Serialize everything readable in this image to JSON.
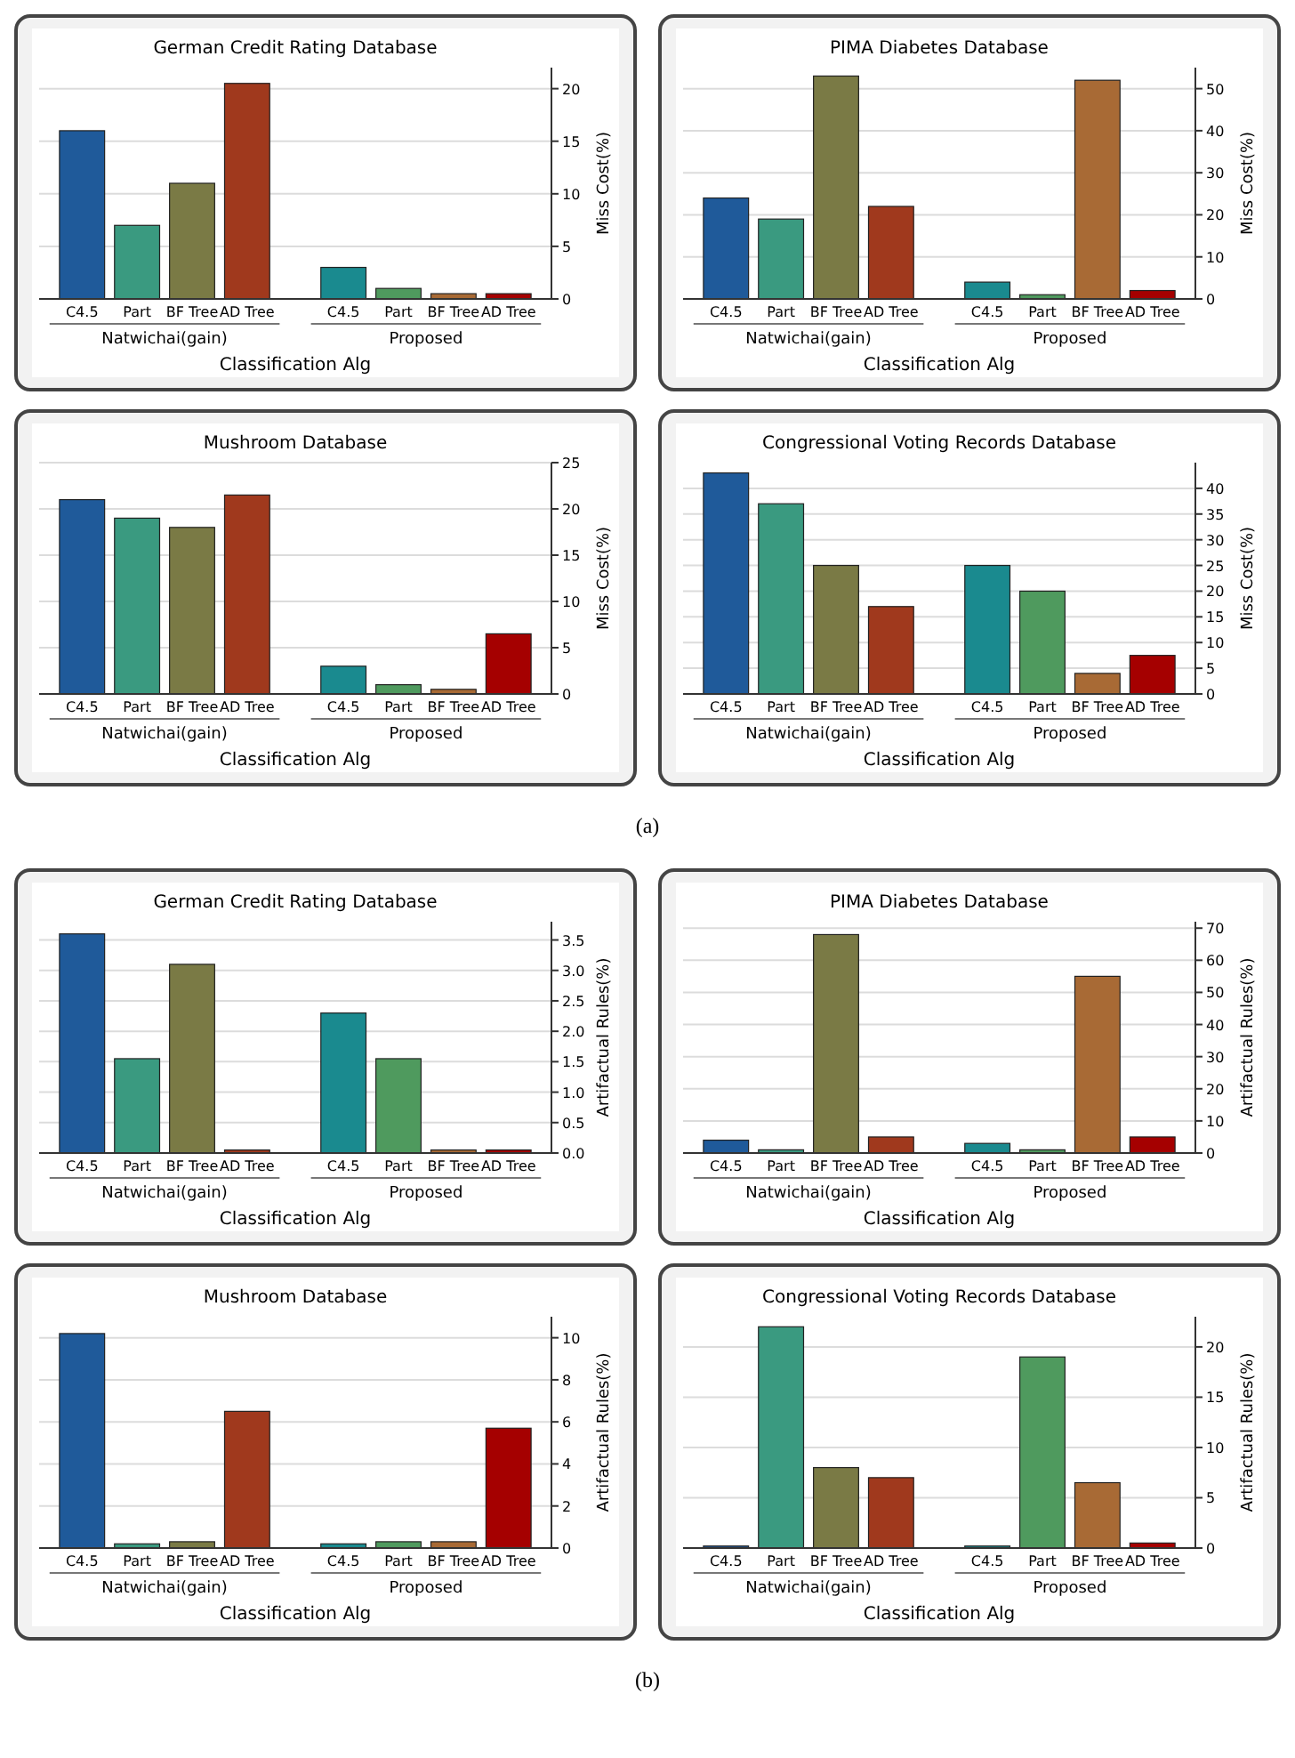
{
  "chart_data": [
    {
      "type": "bar",
      "title": "German Credit Rating Database",
      "xlabel": "Classification Alg",
      "ylabel": "Miss Cost(%)",
      "categories": [
        "Natwichai(gain)",
        "Proposed"
      ],
      "series": [
        {
          "name": "C4.5",
          "colors": [
            "#1f5a9a",
            "#1a8a8f"
          ],
          "values": [
            16,
            3
          ]
        },
        {
          "name": "Part",
          "colors": [
            "#3a9a80",
            "#4f9a5e"
          ],
          "values": [
            7,
            1
          ]
        },
        {
          "name": "BF Tree",
          "colors": [
            "#7a7a45",
            "#a86a35"
          ],
          "values": [
            11,
            0.5
          ]
        },
        {
          "name": "AD Tree",
          "colors": [
            "#a0391d",
            "#a50000"
          ],
          "values": [
            20.5,
            0.5
          ]
        }
      ],
      "ylim": [
        0,
        22
      ],
      "yticks": [
        0,
        5,
        10,
        15,
        20
      ],
      "grid": "y"
    },
    {
      "type": "bar",
      "title": "PIMA Diabetes Database",
      "xlabel": "Classification Alg",
      "ylabel": "Miss Cost(%)",
      "categories": [
        "Natwichai(gain)",
        "Proposed"
      ],
      "series": [
        {
          "name": "C4.5",
          "colors": [
            "#1f5a9a",
            "#1a8a8f"
          ],
          "values": [
            24,
            4
          ]
        },
        {
          "name": "Part",
          "colors": [
            "#3a9a80",
            "#4f9a5e"
          ],
          "values": [
            19,
            1
          ]
        },
        {
          "name": "BF Tree",
          "colors": [
            "#7a7a45",
            "#a86a35"
          ],
          "values": [
            53,
            52
          ]
        },
        {
          "name": "AD Tree",
          "colors": [
            "#a0391d",
            "#a50000"
          ],
          "values": [
            22,
            2
          ]
        }
      ],
      "ylim": [
        0,
        55
      ],
      "yticks": [
        0,
        10,
        20,
        30,
        40,
        50
      ],
      "grid": "y"
    },
    {
      "type": "bar",
      "title": "Mushroom Database",
      "xlabel": "Classification Alg",
      "ylabel": "Miss Cost(%)",
      "categories": [
        "Natwichai(gain)",
        "Proposed"
      ],
      "series": [
        {
          "name": "C4.5",
          "colors": [
            "#1f5a9a",
            "#1a8a8f"
          ],
          "values": [
            21,
            3
          ]
        },
        {
          "name": "Part",
          "colors": [
            "#3a9a80",
            "#4f9a5e"
          ],
          "values": [
            19,
            1
          ]
        },
        {
          "name": "BF Tree",
          "colors": [
            "#7a7a45",
            "#a86a35"
          ],
          "values": [
            18,
            0.5
          ]
        },
        {
          "name": "AD Tree",
          "colors": [
            "#a0391d",
            "#a50000"
          ],
          "values": [
            21.5,
            6.5
          ]
        }
      ],
      "ylim": [
        0,
        25
      ],
      "yticks": [
        0,
        5,
        10,
        15,
        20,
        25
      ],
      "grid": "y",
      "annotations": [
        "(a)"
      ]
    },
    {
      "type": "bar",
      "title": "Congressional Voting Records Database",
      "xlabel": "Classification Alg",
      "ylabel": "Miss Cost(%)",
      "categories": [
        "Natwichai(gain)",
        "Proposed"
      ],
      "series": [
        {
          "name": "C4.5",
          "colors": [
            "#1f5a9a",
            "#1a8a8f"
          ],
          "values": [
            43,
            25
          ]
        },
        {
          "name": "Part",
          "colors": [
            "#3a9a80",
            "#4f9a5e"
          ],
          "values": [
            37,
            20
          ]
        },
        {
          "name": "BF Tree",
          "colors": [
            "#7a7a45",
            "#a86a35"
          ],
          "values": [
            25,
            4
          ]
        },
        {
          "name": "AD Tree",
          "colors": [
            "#a0391d",
            "#a50000"
          ],
          "values": [
            17,
            7.5
          ]
        }
      ],
      "ylim": [
        0,
        45
      ],
      "yticks": [
        0,
        5,
        10,
        15,
        20,
        25,
        30,
        35,
        40
      ],
      "grid": "y"
    },
    {
      "type": "bar",
      "title": "German Credit Rating Database",
      "xlabel": "Classification Alg",
      "ylabel": "Artifactual Rules(%)",
      "categories": [
        "Natwichai(gain)",
        "Proposed"
      ],
      "series": [
        {
          "name": "C4.5",
          "colors": [
            "#1f5a9a",
            "#1a8a8f"
          ],
          "values": [
            3.6,
            2.3
          ]
        },
        {
          "name": "Part",
          "colors": [
            "#3a9a80",
            "#4f9a5e"
          ],
          "values": [
            1.55,
            1.55
          ]
        },
        {
          "name": "BF Tree",
          "colors": [
            "#7a7a45",
            "#a86a35"
          ],
          "values": [
            3.1,
            0.05
          ]
        },
        {
          "name": "AD Tree",
          "colors": [
            "#a0391d",
            "#a50000"
          ],
          "values": [
            0.05,
            0.05
          ]
        }
      ],
      "ylim": [
        0,
        3.8
      ],
      "yticks": [
        {
          "value": 0,
          "label": "0.0"
        },
        {
          "value": 0.5,
          "label": "0.5"
        },
        {
          "value": 1,
          "label": "1.0"
        },
        {
          "value": 1.5,
          "label": "1.5"
        },
        {
          "value": 2,
          "label": "2.0"
        },
        {
          "value": 2.5,
          "label": "2.5"
        },
        {
          "value": 3,
          "label": "3.0"
        },
        {
          "value": 3.5,
          "label": "3.5"
        }
      ],
      "grid": "y"
    },
    {
      "type": "bar",
      "title": "PIMA Diabetes Database",
      "xlabel": "Classification Alg",
      "ylabel": "Artifactual Rules(%)",
      "categories": [
        "Natwichai(gain)",
        "Proposed"
      ],
      "series": [
        {
          "name": "C4.5",
          "colors": [
            "#1f5a9a",
            "#1a8a8f"
          ],
          "values": [
            4,
            3
          ]
        },
        {
          "name": "Part",
          "colors": [
            "#3a9a80",
            "#4f9a5e"
          ],
          "values": [
            1,
            1
          ]
        },
        {
          "name": "BF Tree",
          "colors": [
            "#7a7a45",
            "#a86a35"
          ],
          "values": [
            68,
            55
          ]
        },
        {
          "name": "AD Tree",
          "colors": [
            "#a0391d",
            "#a50000"
          ],
          "values": [
            5,
            5
          ]
        }
      ],
      "ylim": [
        0,
        72
      ],
      "yticks": [
        0,
        10,
        20,
        30,
        40,
        50,
        60,
        70
      ],
      "grid": "y"
    },
    {
      "type": "bar",
      "title": "Mushroom Database",
      "xlabel": "Classification Alg",
      "ylabel": "Artifactual Rules(%)",
      "categories": [
        "Natwichai(gain)",
        "Proposed"
      ],
      "series": [
        {
          "name": "C4.5",
          "colors": [
            "#1f5a9a",
            "#1a8a8f"
          ],
          "values": [
            10.2,
            0.2
          ]
        },
        {
          "name": "Part",
          "colors": [
            "#3a9a80",
            "#4f9a5e"
          ],
          "values": [
            0.2,
            0.3
          ]
        },
        {
          "name": "BF Tree",
          "colors": [
            "#7a7a45",
            "#a86a35"
          ],
          "values": [
            0.3,
            0.3
          ]
        },
        {
          "name": "AD Tree",
          "colors": [
            "#a0391d",
            "#a50000"
          ],
          "values": [
            6.5,
            5.7
          ]
        }
      ],
      "ylim": [
        0,
        11
      ],
      "yticks": [
        0,
        2,
        4,
        6,
        8,
        10
      ],
      "grid": "y",
      "annotations": [
        "(b)"
      ]
    },
    {
      "type": "bar",
      "title": "Congressional Voting Records Database",
      "xlabel": "Classification Alg",
      "ylabel": "Artifactual Rules(%)",
      "categories": [
        "Natwichai(gain)",
        "Proposed"
      ],
      "series": [
        {
          "name": "C4.5",
          "colors": [
            "#1f5a9a",
            "#1a8a8f"
          ],
          "values": [
            0.2,
            0.2
          ]
        },
        {
          "name": "Part",
          "colors": [
            "#3a9a80",
            "#4f9a5e"
          ],
          "values": [
            22,
            19
          ]
        },
        {
          "name": "BF Tree",
          "colors": [
            "#7a7a45",
            "#a86a35"
          ],
          "values": [
            8,
            6.5
          ]
        },
        {
          "name": "AD Tree",
          "colors": [
            "#a0391d",
            "#a50000"
          ],
          "values": [
            7,
            0.5
          ]
        }
      ],
      "ylim": [
        0,
        23
      ],
      "yticks": [
        0,
        5,
        10,
        15,
        20
      ],
      "grid": "y"
    }
  ]
}
